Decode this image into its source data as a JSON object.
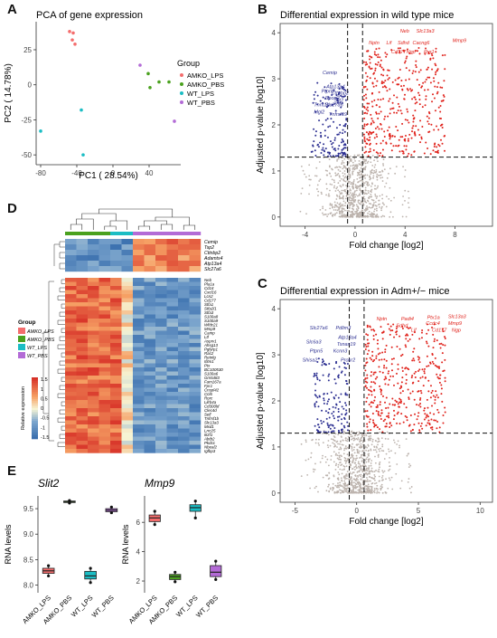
{
  "panels": {
    "A": "A",
    "B": "B",
    "C": "C",
    "D": "D",
    "E": "E"
  },
  "colors": {
    "AMKO_LPS": "#f46d6d",
    "AMKO_PBS": "#4aa11e",
    "WT_LPS": "#1bbdc4",
    "WT_PBS": "#b36bd6",
    "up": "#e0231c",
    "down": "#2e3192",
    "ns": "#bcb3ad"
  },
  "chart_data": [
    {
      "type": "scatter",
      "title": "PCA of gene expression",
      "xlabel": "PC1 ( 28.54%)",
      "ylabel": "PC2 ( 14.78%)",
      "xlim": [
        -85,
        75
      ],
      "ylim": [
        -57,
        45
      ],
      "xticks": [
        -80,
        -40,
        0,
        40
      ],
      "yticks": [
        -50,
        -25,
        0,
        25
      ],
      "legend_title": "Group",
      "legend_position": "right",
      "series": [
        {
          "name": "AMKO_LPS",
          "x": [
            -48,
            -44,
            -45,
            -42
          ],
          "y": [
            38,
            37,
            32,
            29
          ]
        },
        {
          "name": "AMKO_PBS",
          "x": [
            39,
            41,
            51,
            62
          ],
          "y": [
            8,
            -2,
            2,
            2
          ]
        },
        {
          "name": "WT_LPS",
          "x": [
            -80,
            -35,
            -33
          ],
          "y": [
            -33,
            -18,
            -50
          ]
        },
        {
          "name": "WT_PBS",
          "x": [
            30,
            68
          ],
          "y": [
            14,
            -26
          ]
        }
      ]
    },
    {
      "type": "scatter",
      "title": "Differential expression in wild type mice",
      "xlabel": "Fold change [log2]",
      "ylabel": "Adjusted p-value [log10]",
      "xlim": [
        -6,
        11
      ],
      "ylim": [
        -0.2,
        4.2
      ],
      "xticks": [
        -4,
        0,
        4,
        8
      ],
      "yticks": [
        0,
        1,
        2,
        3,
        4
      ],
      "thresholds": {
        "fc": [
          -0.6,
          0.6
        ],
        "p": 1.3
      },
      "labels_up": [
        "Neb",
        "Slc13a3",
        "Nptn",
        "Lif",
        "Sdhd",
        "Cacng6",
        "Mmp9",
        "Cd177",
        "Ngp",
        "Ryr1"
      ],
      "labels_down": [
        "Cemip",
        "Atp13a4",
        "Ptpn5",
        "Cttnbp2",
        "Spon2",
        "Slit2",
        "Tnnt1b",
        "Slc27a6",
        "Mgl2",
        "Tnfrsf19"
      ]
    },
    {
      "type": "scatter",
      "title": "Differential expression in Adm+/− mice",
      "xlabel": "Fold change [log2]",
      "ylabel": "Adjusted p-value [log10]",
      "xlim": [
        -6.2,
        11
      ],
      "ylim": [
        -0.2,
        4.2
      ],
      "xticks": [
        -5,
        0,
        5,
        10
      ],
      "yticks": [
        0,
        1,
        2,
        3,
        4
      ],
      "thresholds": {
        "fc": [
          -0.6,
          0.6
        ],
        "p": 1.3
      },
      "labels_up": [
        "Nptn",
        "Padi4",
        "Ptx1a",
        "Slc13a3",
        "Sdhd",
        "Ccdc4",
        "Mmp9",
        "Lif",
        "Cd177",
        "Ngp"
      ],
      "labels_down": [
        "Slc27a6",
        "Pdlim3",
        "Atp13a4",
        "Tsnax19",
        "Slc6a3",
        "Ptpn5",
        "Kcnn3",
        "Shisa2",
        "Prokr2"
      ]
    },
    {
      "type": "heatmap",
      "legend_title": "Group",
      "groups": [
        "AMKO_LPS",
        "AMKO_PBS",
        "WT_LPS",
        "WT_PBS"
      ],
      "colorbar_label": "Relative expression",
      "colorbar_ticks": [
        1.5,
        1,
        0.5,
        0,
        -0.5,
        -1,
        -1.5
      ],
      "genes_top": [
        "Cemip",
        "Tsp2",
        "Cttnbp2",
        "Adamts4",
        "Atp13a4",
        "Slc27a6"
      ],
      "genes_main": [
        "Neb",
        "Pla1a",
        "Cd14",
        "Cxcl16",
        "Lcn2",
        "Cd177",
        "Stfa1",
        "Stfa2l1",
        "Stfa3",
        "S100a8",
        "S100a9",
        "Wfdc21",
        "Mmp9",
        "Camp",
        "Ltf",
        "Asprv1",
        "Ahsg13",
        "Pglyrp1",
        "Rac2",
        "Retnlg",
        "Ifitm1",
        "Ptx",
        "BC100530",
        "S100a6",
        "Gm5483",
        "Fam167a",
        "Fpr1",
        "Cnspl42",
        "Ccl6",
        "Rorc",
        "Lilrb4a",
        "Cd300ld",
        "Clec4d",
        "Sell",
        "Tnfrsf1b",
        "Slc13a3",
        "Mxd1",
        "Lrrc25",
        "Ikzf1",
        "Abtb2",
        "Pkdcc",
        "Nbeal2",
        "Igfbp3"
      ]
    },
    {
      "type": "box",
      "title": "Slit2",
      "ylabel": "RNA levels",
      "ylim": [
        7.85,
        9.75
      ],
      "yticks": [
        8.0,
        8.5,
        9.0,
        9.5
      ],
      "categories": [
        "AMKO_LPS",
        "AMKO_PBS",
        "WT_LPS",
        "WT_PBS"
      ],
      "boxes": [
        {
          "min": 8.18,
          "q1": 8.23,
          "median": 8.28,
          "q3": 8.33,
          "max": 8.38
        },
        {
          "min": 9.61,
          "q1": 9.62,
          "median": 9.63,
          "q3": 9.65,
          "max": 9.66
        },
        {
          "min": 8.05,
          "q1": 8.12,
          "median": 8.18,
          "q3": 8.27,
          "max": 8.33
        },
        {
          "min": 9.42,
          "q1": 9.44,
          "median": 9.47,
          "q3": 9.5,
          "max": 9.53
        }
      ]
    },
    {
      "type": "box",
      "title": "Mmp9",
      "ylabel": "RNA levels",
      "ylim": [
        1.2,
        7.8
      ],
      "yticks": [
        2,
        4,
        6
      ],
      "categories": [
        "AMKO_LPS",
        "AMKO_PBS",
        "WT_LPS",
        "WT_PBS"
      ],
      "boxes": [
        {
          "min": 5.85,
          "q1": 6.05,
          "median": 6.3,
          "q3": 6.5,
          "max": 6.75
        },
        {
          "min": 1.95,
          "q1": 2.1,
          "median": 2.3,
          "q3": 2.45,
          "max": 2.6
        },
        {
          "min": 6.3,
          "q1": 6.75,
          "median": 7.0,
          "q3": 7.2,
          "max": 7.45
        },
        {
          "min": 2.1,
          "q1": 2.3,
          "median": 2.6,
          "q3": 3.05,
          "max": 3.35
        }
      ]
    }
  ]
}
